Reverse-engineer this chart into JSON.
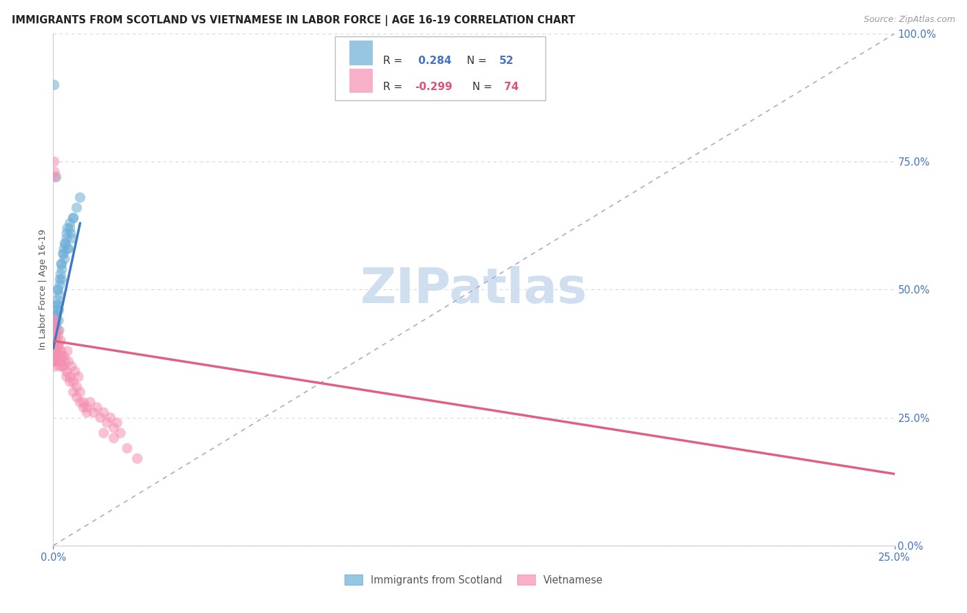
{
  "title": "IMMIGRANTS FROM SCOTLAND VS VIETNAMESE IN LABOR FORCE | AGE 16-19 CORRELATION CHART",
  "source": "Source: ZipAtlas.com",
  "ylabel": "In Labor Force | Age 16-19",
  "legend_bottom": [
    "Immigrants from Scotland",
    "Vietnamese"
  ],
  "blue_color": "#6baed6",
  "pink_color": "#f48fb1",
  "blue_scatter_x": [
    0.0002,
    0.0003,
    0.0004,
    0.0005,
    0.0006,
    0.0007,
    0.0008,
    0.0009,
    0.001,
    0.0011,
    0.0012,
    0.0013,
    0.0014,
    0.0015,
    0.0016,
    0.0017,
    0.0018,
    0.002,
    0.0022,
    0.0024,
    0.0025,
    0.0026,
    0.003,
    0.0032,
    0.0034,
    0.0036,
    0.004,
    0.0042,
    0.0044,
    0.005,
    0.0052,
    0.006,
    0.0004,
    0.0005,
    0.0006,
    0.0008,
    0.001,
    0.0012,
    0.0015,
    0.002,
    0.0025,
    0.003,
    0.0035,
    0.004,
    0.0045,
    0.005,
    0.0055,
    0.006,
    0.007,
    0.008,
    0.0003,
    0.0009
  ],
  "blue_scatter_y": [
    0.36,
    0.38,
    0.4,
    0.42,
    0.38,
    0.41,
    0.43,
    0.45,
    0.44,
    0.46,
    0.48,
    0.5,
    0.47,
    0.42,
    0.44,
    0.46,
    0.49,
    0.51,
    0.53,
    0.55,
    0.52,
    0.54,
    0.57,
    0.58,
    0.56,
    0.59,
    0.6,
    0.62,
    0.58,
    0.63,
    0.61,
    0.64,
    0.37,
    0.4,
    0.38,
    0.43,
    0.45,
    0.47,
    0.5,
    0.52,
    0.55,
    0.57,
    0.59,
    0.61,
    0.58,
    0.62,
    0.6,
    0.64,
    0.66,
    0.68,
    0.9,
    0.72
  ],
  "pink_scatter_x": [
    0.0001,
    0.0002,
    0.0003,
    0.0004,
    0.0005,
    0.0006,
    0.0007,
    0.0008,
    0.001,
    0.0012,
    0.0014,
    0.0016,
    0.0018,
    0.002,
    0.0022,
    0.0024,
    0.003,
    0.0032,
    0.0035,
    0.004,
    0.0042,
    0.0045,
    0.005,
    0.0055,
    0.006,
    0.0065,
    0.007,
    0.0075,
    0.008,
    0.009,
    0.01,
    0.011,
    0.012,
    0.013,
    0.014,
    0.015,
    0.016,
    0.017,
    0.018,
    0.019,
    0.02,
    0.0001,
    0.0002,
    0.0003,
    0.0004,
    0.0005,
    0.0006,
    0.0007,
    0.0008,
    0.001,
    0.0012,
    0.0015,
    0.002,
    0.0025,
    0.003,
    0.004,
    0.005,
    0.006,
    0.007,
    0.008,
    0.009,
    0.01,
    0.015,
    0.018,
    0.022,
    0.025,
    0.0003,
    0.0004,
    0.0005,
    0.0006,
    0.0007,
    0.0008,
    0.001,
    0.002
  ],
  "pink_scatter_y": [
    0.38,
    0.4,
    0.42,
    0.44,
    0.41,
    0.43,
    0.38,
    0.36,
    0.4,
    0.38,
    0.41,
    0.39,
    0.42,
    0.37,
    0.4,
    0.38,
    0.35,
    0.37,
    0.36,
    0.34,
    0.38,
    0.36,
    0.33,
    0.35,
    0.32,
    0.34,
    0.31,
    0.33,
    0.3,
    0.28,
    0.27,
    0.28,
    0.26,
    0.27,
    0.25,
    0.26,
    0.24,
    0.25,
    0.23,
    0.24,
    0.22,
    0.36,
    0.38,
    0.37,
    0.39,
    0.35,
    0.4,
    0.37,
    0.36,
    0.38,
    0.37,
    0.39,
    0.36,
    0.37,
    0.35,
    0.33,
    0.32,
    0.3,
    0.29,
    0.28,
    0.27,
    0.26,
    0.22,
    0.21,
    0.19,
    0.17,
    0.75,
    0.73,
    0.72,
    0.44,
    0.42,
    0.41,
    0.39,
    0.35
  ],
  "xmin": 0.0,
  "xmax": 0.25,
  "ymin": 0.0,
  "ymax": 1.0,
  "blue_line_x": [
    0.0,
    0.008
  ],
  "blue_line_y": [
    0.385,
    0.63
  ],
  "pink_line_x": [
    0.0,
    0.25
  ],
  "pink_line_y": [
    0.4,
    0.14
  ],
  "ref_line_x": [
    0.0,
    0.25
  ],
  "ref_line_y": [
    0.0,
    1.0
  ],
  "yticks": [
    0.0,
    0.25,
    0.5,
    0.75,
    1.0
  ],
  "grid_color": "#cccccc",
  "title_color": "#222222",
  "right_axis_color": "#4472c4",
  "watermark_color": "#d0dff0"
}
